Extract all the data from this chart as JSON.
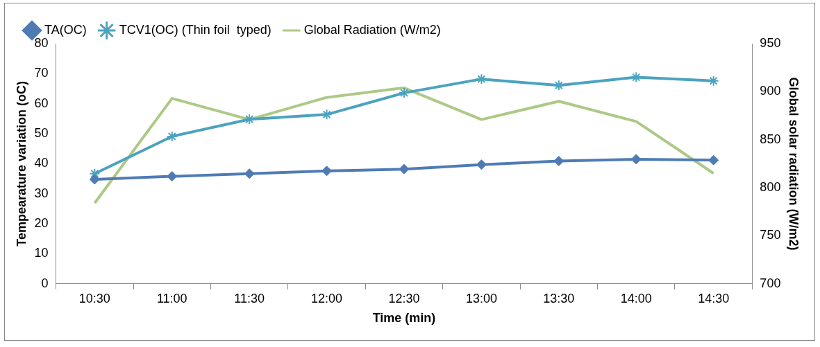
{
  "chart_data": {
    "type": "line",
    "xlabel": "Time (min)",
    "ylabel": "Tempearature variation (oC)",
    "y2label": "Global solar radiation (W/m2)",
    "categories": [
      "10:30",
      "11:00",
      "11:30",
      "12:00",
      "12:30",
      "13:00",
      "13:30",
      "14:00",
      "14:30"
    ],
    "series": [
      {
        "name": "TA(OC)",
        "color": "#4f7bb5",
        "marker": "diamond",
        "values": [
          34.8,
          35.8,
          36.7,
          37.6,
          38.2,
          39.7,
          40.9,
          41.5,
          41.2
        ]
      },
      {
        "name": "TCV1(OC) (Thin foil  typed)",
        "color": "#4ba3bf",
        "marker": "cross",
        "values": [
          36.7,
          49.1,
          54.8,
          56.4,
          63.6,
          68.2,
          66.1,
          68.8,
          67.6
        ]
      },
      {
        "name": "Global Radiation (W/m2)",
        "color": "#adc986",
        "marker": "none",
        "axis": "y2",
        "values": [
          784,
          893,
          871,
          894,
          904,
          871,
          890,
          869,
          815
        ]
      }
    ],
    "ylim": [
      0,
      80
    ],
    "yticks": [
      0,
      10,
      20,
      30,
      40,
      50,
      60,
      70,
      80
    ],
    "y2lim": [
      700,
      950
    ],
    "y2ticks": [
      700,
      750,
      800,
      850,
      900,
      950
    ],
    "grid": false,
    "legend": "top"
  }
}
